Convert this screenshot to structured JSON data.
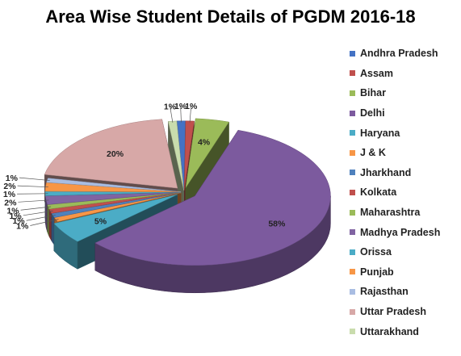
{
  "chart_data": {
    "type": "pie",
    "title": "Area Wise Student Details of PGDM 2016-18",
    "legend_position": "right",
    "three_d": true,
    "exploded": true,
    "slices": [
      {
        "label": "Andhra Pradesh",
        "value": 1,
        "value_label": "1%",
        "color": "#4472c4"
      },
      {
        "label": "Assam",
        "value": 1,
        "value_label": "1%",
        "color": "#c0504d"
      },
      {
        "label": "Bihar",
        "value": 4,
        "value_label": "4%",
        "color": "#9bbb59"
      },
      {
        "label": "Delhi",
        "value": 58,
        "value_label": "58%",
        "color": "#7c5a9e"
      },
      {
        "label": "Haryana",
        "value": 5,
        "value_label": "5%",
        "color": "#4bacc6"
      },
      {
        "label": "J & K",
        "value": 1,
        "value_label": "1%",
        "color": "#f79646"
      },
      {
        "label": "Jharkhand",
        "value": 1,
        "value_label": "1%",
        "color": "#4f81bd"
      },
      {
        "label": "Kolkata",
        "value": 1,
        "value_label": "1%",
        "color": "#c0504d"
      },
      {
        "label": "Maharashtra",
        "value": 1,
        "value_label": "1%",
        "color": "#9bbb59"
      },
      {
        "label": "Madhya Pradesh",
        "value": 2,
        "value_label": "2%",
        "color": "#8064a2"
      },
      {
        "label": "Orissa",
        "value": 1,
        "value_label": "1%",
        "color": "#4bacc6"
      },
      {
        "label": "Punjab",
        "value": 2,
        "value_label": "2%",
        "color": "#f79646"
      },
      {
        "label": "Rajasthan",
        "value": 1,
        "value_label": "1%",
        "color": "#a9bde2"
      },
      {
        "label": "Uttar Pradesh",
        "value": 20,
        "value_label": "20%",
        "color": "#d7a8a7"
      },
      {
        "label": "Uttarakhand",
        "value": 1,
        "value_label": "1%",
        "color": "#c9dcad"
      }
    ]
  }
}
